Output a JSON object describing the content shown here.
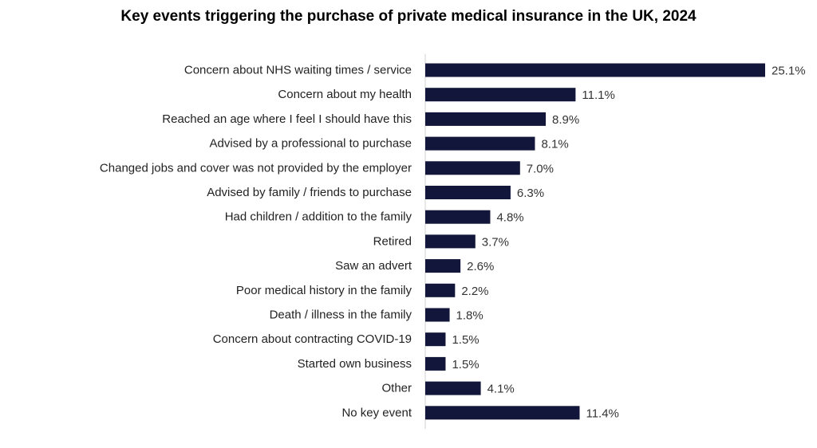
{
  "chart_data": {
    "type": "bar",
    "orientation": "horizontal",
    "title": "Key events triggering the purchase of private medical insurance in the UK, 2024",
    "xlabel": "",
    "ylabel": "",
    "grid": false,
    "legend": "none",
    "bar_color": "#12163a",
    "value_suffix": "%",
    "xlim": [
      0,
      25.1
    ],
    "categories": [
      "Concern about NHS waiting times / service",
      "Concern about my health",
      "Reached an age where I feel I should have this",
      "Advised by a professional to purchase",
      "Changed jobs and cover was not provided by the employer",
      "Advised by family / friends to purchase",
      "Had children / addition to the family",
      "Retired",
      "Saw an advert",
      "Poor medical history in the family",
      "Death / illness in the family",
      "Concern about contracting COVID-19",
      "Started own business",
      "Other",
      "No key event"
    ],
    "values": [
      25.1,
      11.1,
      8.9,
      8.1,
      7.0,
      6.3,
      4.8,
      3.7,
      2.6,
      2.2,
      1.8,
      1.5,
      1.5,
      4.1,
      11.4
    ],
    "data_labels": [
      "25.1%",
      "11.1%",
      "8.9%",
      "8.1%",
      "7.0%",
      "6.3%",
      "4.8%",
      "3.7%",
      "2.6%",
      "2.2%",
      "1.8%",
      "1.5%",
      "1.5%",
      "4.1%",
      "11.4%"
    ]
  }
}
